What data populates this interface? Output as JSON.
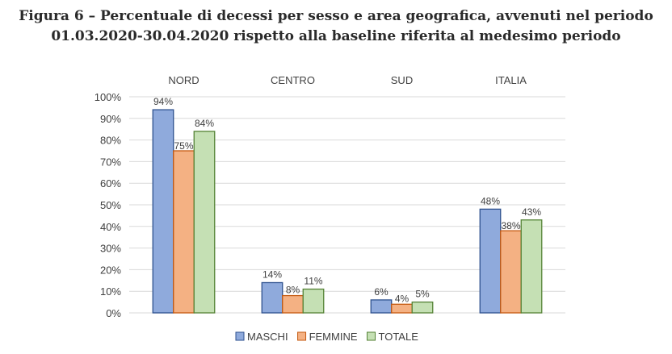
{
  "chart_data": {
    "type": "bar",
    "title": [
      "Figura 6 – Percentuale di decessi per sesso e area geografica, avvenuti nel periodo",
      "01.03.2020-30.04.2020 rispetto alla baseline riferita al medesimo periodo"
    ],
    "categories": [
      "NORD",
      "CENTRO",
      "SUD",
      "ITALIA"
    ],
    "series": [
      {
        "name": "MASCHI",
        "values": [
          94,
          14,
          6,
          48
        ],
        "color": "#8faadc",
        "stroke": "#2f528f"
      },
      {
        "name": "FEMMINE",
        "values": [
          75,
          8,
          4,
          38
        ],
        "color": "#f4b183",
        "stroke": "#c55a11"
      },
      {
        "name": "TOTALE",
        "values": [
          84,
          11,
          5,
          43
        ],
        "color": "#c5e0b4",
        "stroke": "#548235"
      }
    ],
    "yticks": [
      "0%",
      "10%",
      "20%",
      "30%",
      "40%",
      "50%",
      "60%",
      "70%",
      "80%",
      "90%",
      "100%"
    ],
    "ylim": [
      0,
      100
    ],
    "grid": true,
    "category_labels_position": "top",
    "legend": "bottom"
  }
}
